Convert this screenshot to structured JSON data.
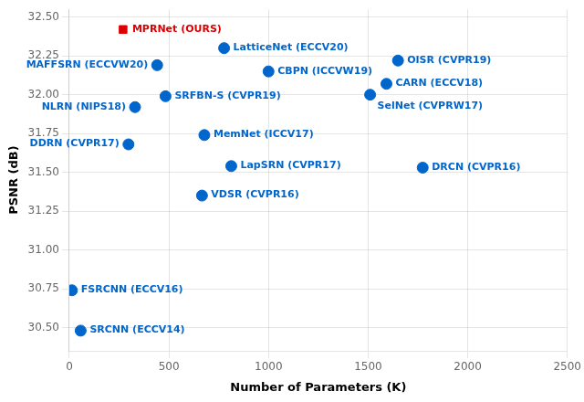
{
  "chart_data": {
    "type": "scatter",
    "xlabel": "Number of Parameters (K)",
    "ylabel": "PSNR (dB)",
    "xlim": [
      0,
      2500
    ],
    "ylim": [
      30.35,
      32.55
    ],
    "xticks": [
      0,
      500,
      1000,
      1500,
      2000,
      2500
    ],
    "yticks": [
      {
        "value": 30.5,
        "label": "30.50"
      },
      30.75,
      {
        "value": 31.0,
        "label": "31.00"
      },
      31.25,
      {
        "value": 31.5,
        "label": "31.50"
      },
      31.75,
      {
        "value": 32.0,
        "label": "32.00"
      },
      32.25,
      {
        "value": 32.5,
        "label": "32.50"
      }
    ],
    "grid": true,
    "series": [
      {
        "color": "#dd0000",
        "marker": "square",
        "x": [
          270
        ],
        "values": [
          32.42
        ],
        "annotations": [
          "MPRNet (OURS)"
        ]
      },
      {
        "color": "#0066cc",
        "marker": "circle",
        "x": [
          777,
          441,
          1000,
          1650,
          483,
          330,
          1592,
          1510,
          678,
          297,
          813,
          1774,
          666,
          13,
          57
        ],
        "values": [
          32.3,
          32.19,
          32.15,
          32.22,
          31.99,
          31.92,
          32.07,
          32.0,
          31.74,
          31.68,
          31.54,
          31.53,
          31.35,
          30.74,
          30.48
        ],
        "annotations": [
          "LatticeNet (ECCV20)",
          "MAFFSRN (ECCVW20)",
          "CBPN (ICCVW19)",
          "OISR (CVPR19)",
          "SRFBN-S (CVPR19)",
          "NLRN (NIPS18)",
          "CARN (ECCV18)",
          "SelNet (CVPRW17)",
          "MemNet (ICCV17)",
          "DDRN (CVPR17)",
          "LapSRN (CVPR17)",
          "DRCN (CVPR16)",
          "VDSR (CVPR16)",
          "FSRCNN (ECCV16)",
          "SRCNN (ECCV14)"
        ]
      }
    ]
  }
}
